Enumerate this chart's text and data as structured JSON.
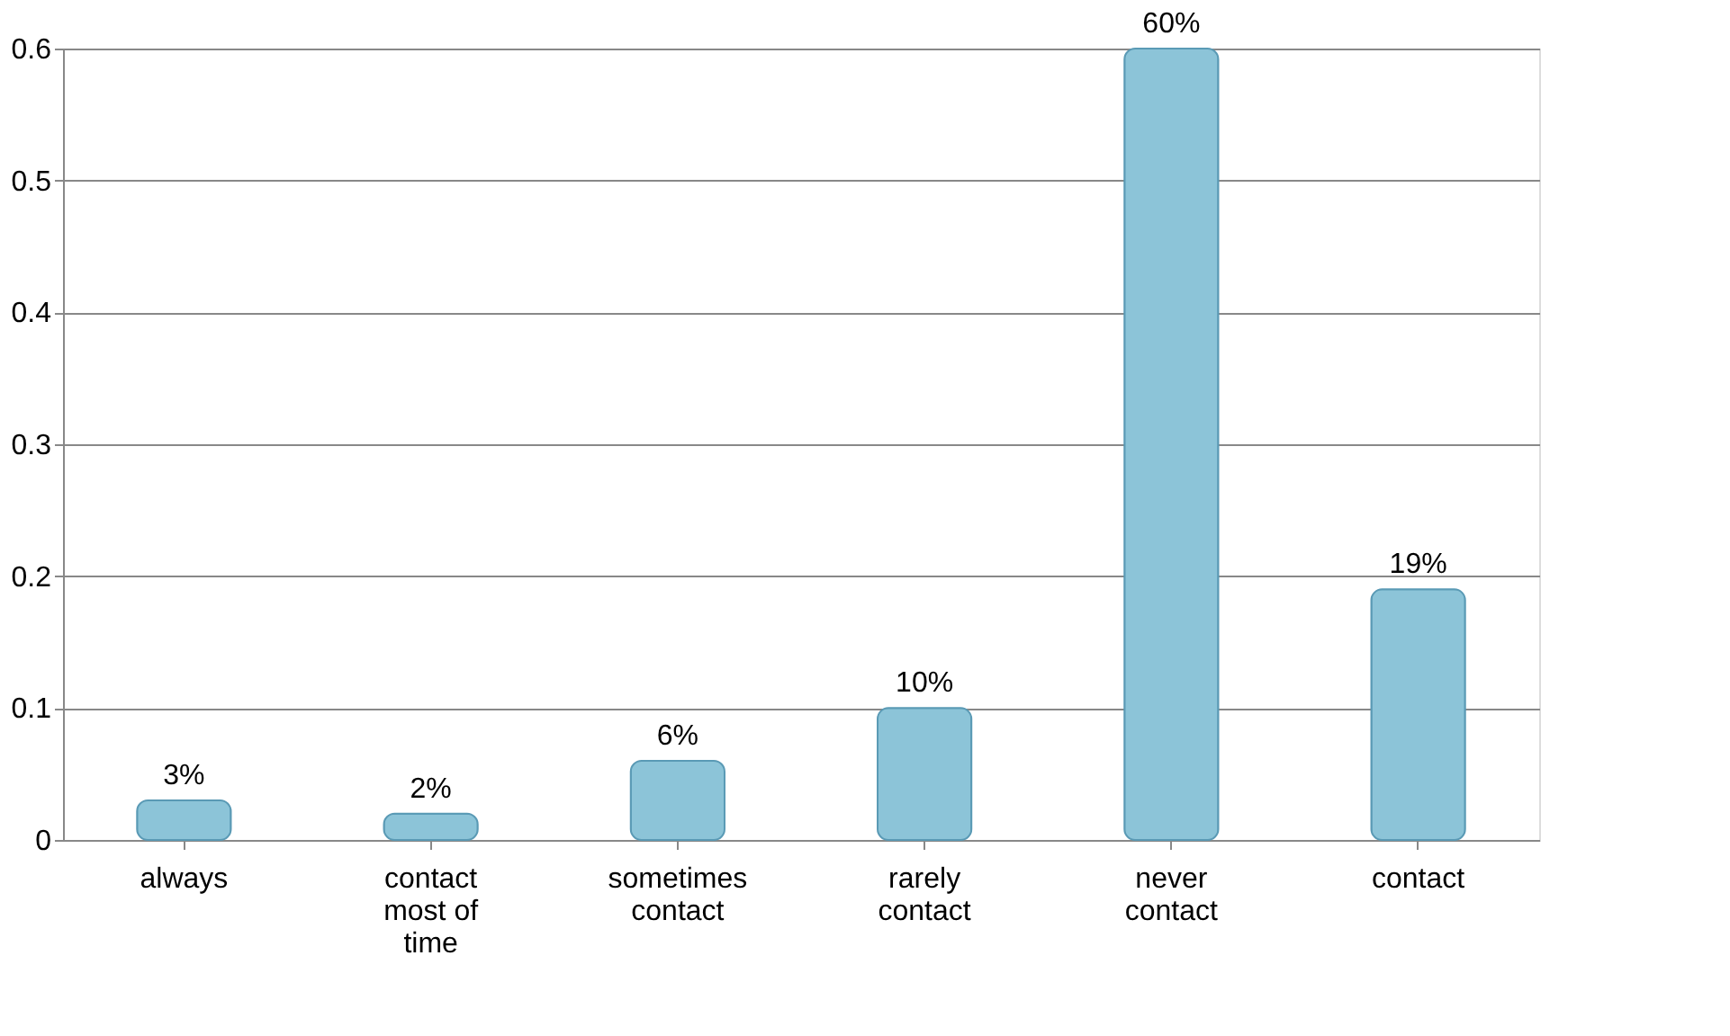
{
  "chart_data": {
    "type": "bar",
    "categories": [
      "always",
      "contact most of time",
      "sometimes contact",
      "rarely contact",
      "never contact",
      "contact"
    ],
    "values": [
      0.03,
      0.02,
      0.06,
      0.1,
      0.6,
      0.19
    ],
    "value_labels": [
      "3%",
      "2%",
      "6%",
      "10%",
      "60%",
      "19%"
    ],
    "color": "#8cc4d8",
    "ylim": [
      0,
      0.6
    ],
    "yticks": [
      0,
      0.1,
      0.2,
      0.3,
      0.4,
      0.5,
      0.6
    ],
    "grid": "y"
  }
}
